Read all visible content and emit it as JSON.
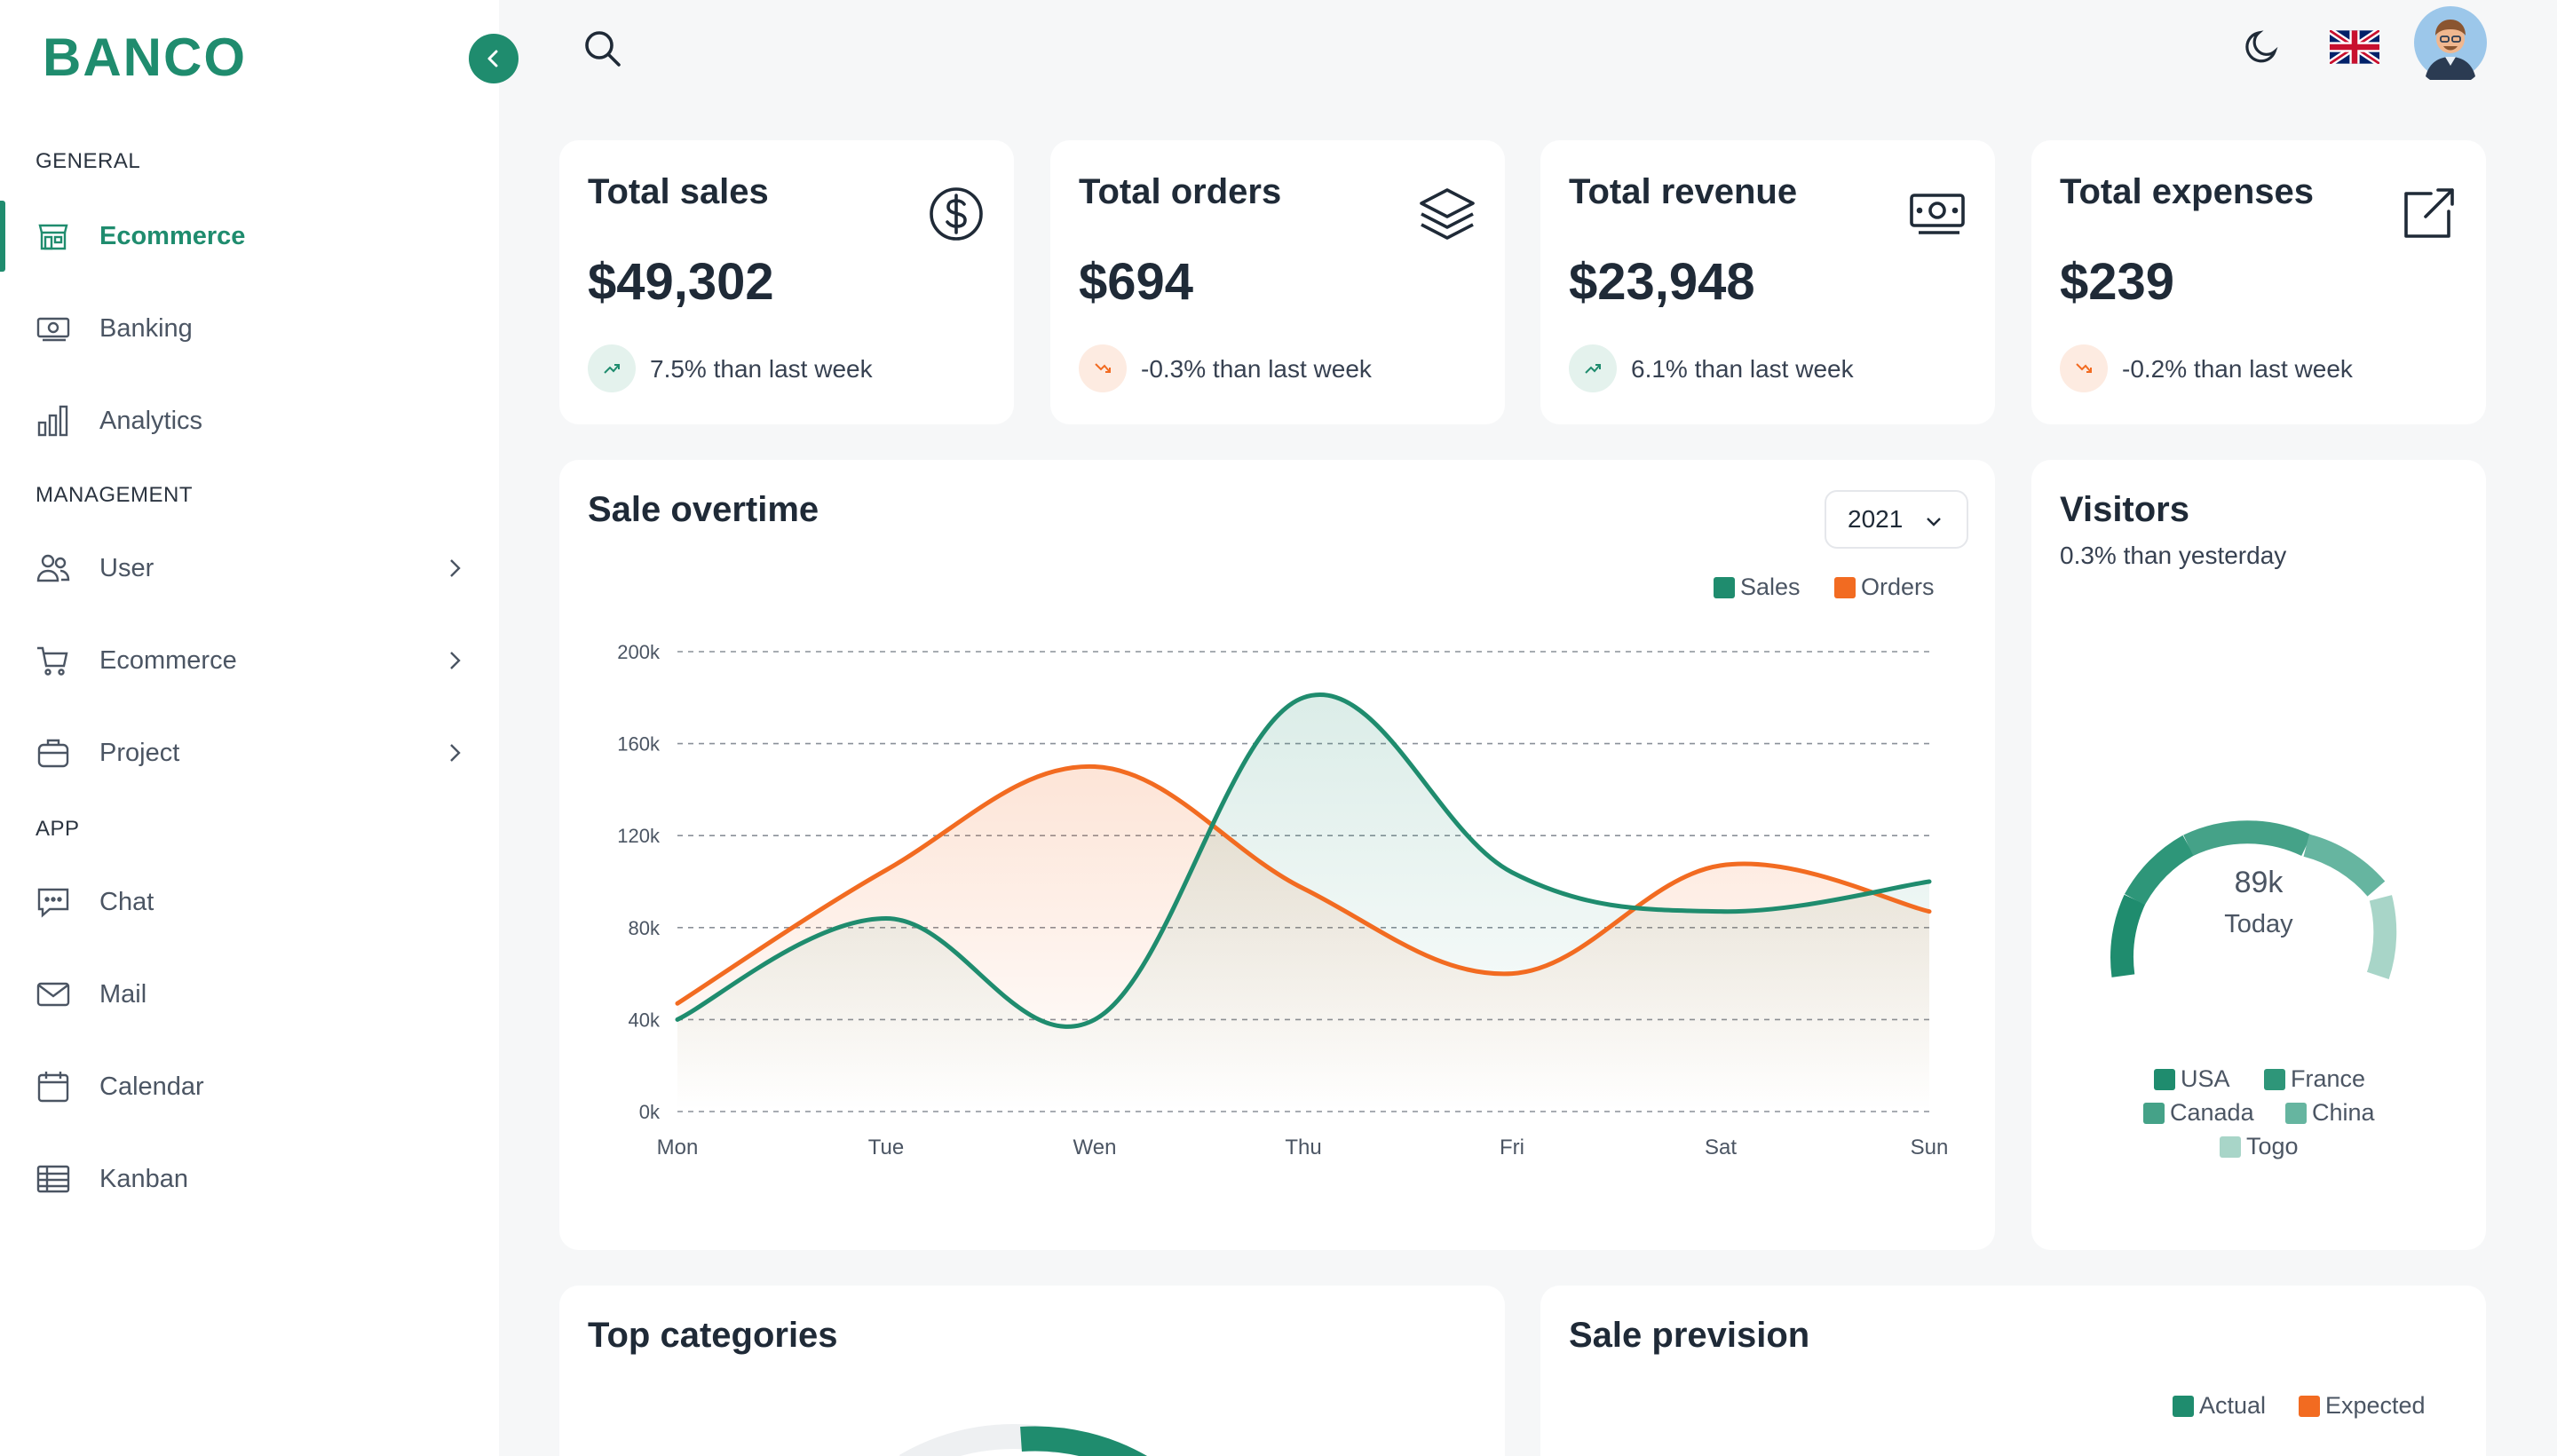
{
  "app": {
    "logo": "BANCO"
  },
  "sidebar": {
    "sections": [
      {
        "title": "GENERAL"
      },
      {
        "title": "MANAGEMENT"
      },
      {
        "title": "APP"
      }
    ],
    "items": [
      {
        "label": "Ecommerce",
        "icon": "store-icon",
        "active": true
      },
      {
        "label": "Banking",
        "icon": "banknote-icon"
      },
      {
        "label": "Analytics",
        "icon": "bar-chart-icon"
      },
      {
        "label": "User",
        "icon": "users-icon",
        "expandable": true
      },
      {
        "label": "Ecommerce",
        "icon": "cart-icon",
        "expandable": true
      },
      {
        "label": "Project",
        "icon": "briefcase-icon",
        "expandable": true
      },
      {
        "label": "Chat",
        "icon": "chat-icon"
      },
      {
        "label": "Mail",
        "icon": "mail-icon"
      },
      {
        "label": "Calendar",
        "icon": "calendar-icon"
      },
      {
        "label": "Kanban",
        "icon": "kanban-icon"
      }
    ]
  },
  "stats": [
    {
      "title": "Total sales",
      "value": "$49,302",
      "trend": "7.5% than last week",
      "direction": "up",
      "icon": "dollar-icon"
    },
    {
      "title": "Total orders",
      "value": "$694",
      "trend": "-0.3% than last week",
      "direction": "down",
      "icon": "layers-icon"
    },
    {
      "title": "Total revenue",
      "value": "$23,948",
      "trend": "6.1% than last week",
      "direction": "up",
      "icon": "money-icon"
    },
    {
      "title": "Total expenses",
      "value": "$239",
      "trend": "-0.2% than last week",
      "direction": "down",
      "icon": "external-link-icon"
    }
  ],
  "sale_overtime": {
    "title": "Sale overtime",
    "year": "2021"
  },
  "visitors": {
    "title": "Visitors",
    "subtitle": "0.3% than yesterday",
    "value": "89k",
    "label": "Today",
    "legend": [
      "USA",
      "France",
      "Canada",
      "China",
      "Togo"
    ]
  },
  "top_categories": {
    "title": "Top categories"
  },
  "sale_prevision": {
    "title": "Sale prevision",
    "legend": [
      "Actual",
      "Expected"
    ]
  },
  "colors": {
    "sales": "#1f8c6e",
    "orders": "#f26b21"
  },
  "chart_data": {
    "type": "area",
    "categories": [
      "Mon",
      "Tue",
      "Wen",
      "Thu",
      "Fri",
      "Sat",
      "Sun"
    ],
    "series": [
      {
        "name": "Sales",
        "values": [
          40,
          84,
          40,
          180,
          104,
          87,
          100
        ]
      },
      {
        "name": "Orders",
        "values": [
          47,
          105,
          150,
          97,
          60,
          107,
          87
        ]
      }
    ],
    "y_ticks": [
      "0k",
      "40k",
      "80k",
      "120k",
      "160k",
      "200k"
    ],
    "ylim": [
      0,
      200
    ],
    "grid": true,
    "legend": "top-right"
  }
}
